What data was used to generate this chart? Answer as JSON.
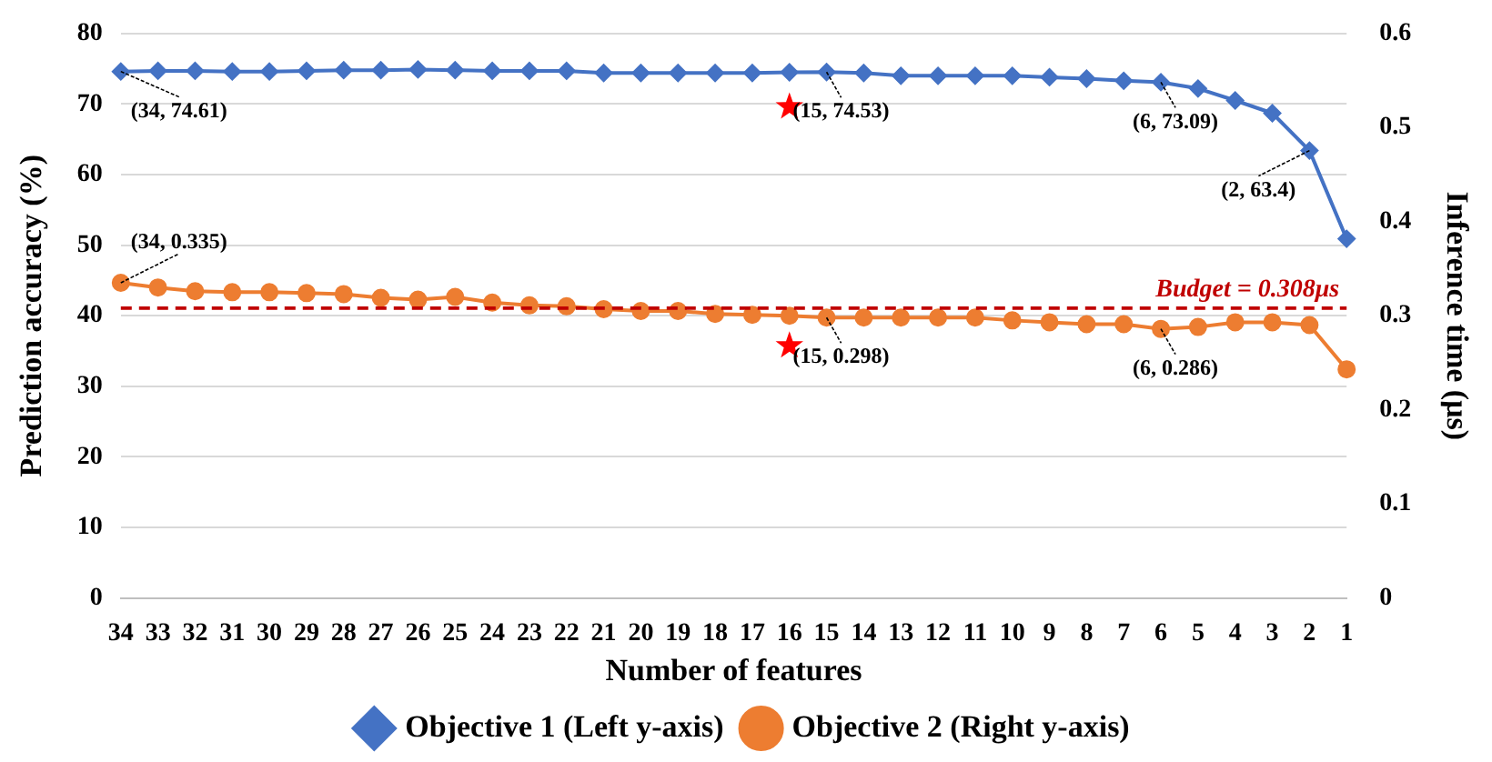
{
  "chart_data": {
    "type": "line",
    "xlabel": "Number of features",
    "ylabel": "Prediction accuracy (%)",
    "y2label": "Inference time (μs)",
    "categories": [
      "34",
      "33",
      "32",
      "31",
      "30",
      "29",
      "28",
      "27",
      "26",
      "25",
      "24",
      "23",
      "22",
      "21",
      "20",
      "19",
      "18",
      "17",
      "16",
      "15",
      "14",
      "13",
      "12",
      "11",
      "10",
      "9",
      "8",
      "7",
      "6",
      "5",
      "4",
      "3",
      "2",
      "1"
    ],
    "series": [
      {
        "name": "Objective 1 (Left y-axis)",
        "color": "#4472c4",
        "marker": "diamond",
        "values": [
          74.61,
          74.7,
          74.7,
          74.6,
          74.6,
          74.7,
          74.8,
          74.8,
          74.9,
          74.8,
          74.7,
          74.7,
          74.7,
          74.4,
          74.4,
          74.4,
          74.4,
          74.4,
          74.5,
          74.53,
          74.4,
          74.0,
          74.0,
          74.0,
          74.0,
          73.8,
          73.6,
          73.3,
          73.09,
          72.2,
          70.5,
          68.7,
          63.4,
          50.9
        ],
        "value_labels": [
          "(34, 74.61)",
          null,
          null,
          null,
          null,
          null,
          null,
          null,
          null,
          null,
          null,
          null,
          null,
          null,
          null,
          null,
          null,
          null,
          null,
          "(15, 74.53)",
          null,
          null,
          null,
          null,
          null,
          null,
          null,
          null,
          "(6, 73.09)",
          null,
          null,
          null,
          "(2, 63.4)",
          null
        ]
      },
      {
        "name": "Objective 2 (Right y-axis)",
        "color": "#ed7d31",
        "marker": "circle",
        "axis": "y2",
        "values": [
          0.335,
          0.33,
          0.326,
          0.325,
          0.325,
          0.324,
          0.323,
          0.319,
          0.317,
          0.32,
          0.314,
          0.311,
          0.31,
          0.307,
          0.305,
          0.305,
          0.302,
          0.301,
          0.3,
          0.298,
          0.298,
          0.298,
          0.298,
          0.298,
          0.295,
          0.293,
          0.291,
          0.291,
          0.286,
          0.288,
          0.293,
          0.293,
          0.29,
          0.243
        ],
        "value_labels": [
          "(34, 0.335)",
          null,
          null,
          null,
          null,
          null,
          null,
          null,
          null,
          null,
          null,
          null,
          null,
          null,
          null,
          null,
          null,
          null,
          null,
          "(15, 0.298)",
          null,
          null,
          null,
          null,
          null,
          null,
          null,
          null,
          "(6, 0.286)",
          null,
          null,
          null,
          null,
          null
        ]
      },
      {
        "type": "scatter",
        "color": "#ff0000",
        "marker": "star",
        "x": [
          "16"
        ],
        "values": [
          69.6
        ]
      },
      {
        "type": "scatter",
        "color": "#ff0000",
        "marker": "star",
        "axis": "y2",
        "x": [
          "16"
        ],
        "values": [
          0.268
        ]
      }
    ],
    "ylim": [
      0,
      80
    ],
    "yticks": [
      0,
      10,
      20,
      30,
      40,
      50,
      60,
      70,
      80
    ],
    "y2lim": [
      0,
      0.6
    ],
    "y2ticks": [
      0,
      0.1,
      0.2,
      0.3,
      0.4,
      0.5,
      0.6
    ],
    "ref_lines": [
      {
        "axis": "y2",
        "value": 0.308,
        "label": "Budget = 0.308μs",
        "color": "#c00000",
        "line_style": "dashed"
      }
    ],
    "grid": "y",
    "legend": "bottom"
  }
}
